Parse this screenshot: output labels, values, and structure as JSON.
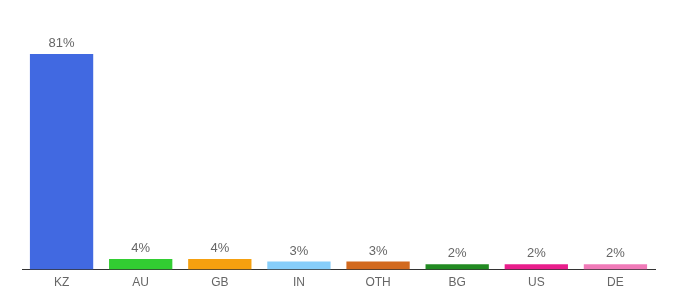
{
  "chart_data": {
    "type": "bar",
    "categories": [
      "KZ",
      "AU",
      "GB",
      "IN",
      "OTH",
      "BG",
      "US",
      "DE"
    ],
    "values": [
      81,
      4,
      4,
      3,
      3,
      2,
      2,
      2
    ],
    "value_labels": [
      "81%",
      "4%",
      "4%",
      "3%",
      "3%",
      "2%",
      "2%",
      "2%"
    ],
    "colors": [
      "#4169e1",
      "#32cd32",
      "#f5a00f",
      "#87cefa",
      "#d2691e",
      "#228b22",
      "#e91e8c",
      "#f07ab8"
    ],
    "ylim": [
      0,
      90
    ],
    "grid": false,
    "data_labels": true,
    "tick_labels": "x"
  }
}
